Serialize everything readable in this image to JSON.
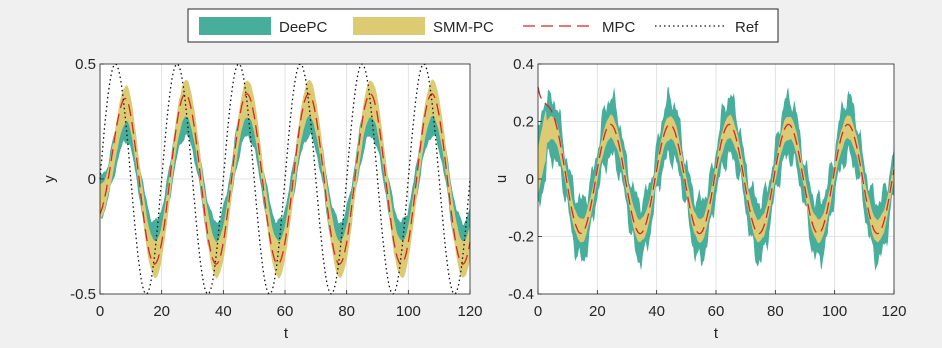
{
  "legend": {
    "placement": "top-center",
    "entries": [
      {
        "label": "DeePC",
        "style": "band",
        "color": "#46ae9a"
      },
      {
        "label": "SMM-PC",
        "style": "band",
        "color": "#dccb72"
      },
      {
        "label": "MPC",
        "style": "dashed-line",
        "color": "#d62728"
      },
      {
        "label": "Ref",
        "style": "dotted-line",
        "color": "#111111"
      }
    ]
  },
  "chart_data": [
    {
      "type": "line",
      "title": "",
      "xlabel": "t",
      "ylabel": "y",
      "xlim": [
        0,
        120
      ],
      "ylim": [
        -0.5,
        0.5
      ],
      "grid": true,
      "xticks": [
        0,
        20,
        40,
        60,
        80,
        100,
        120
      ],
      "yticks": [
        -0.5,
        0,
        0.5
      ],
      "xtick_labels": [
        "0",
        "20",
        "40",
        "60",
        "80",
        "100",
        "120"
      ],
      "ytick_labels": [
        "-0.5",
        "0",
        "0.5"
      ],
      "period": 20,
      "series": [
        {
          "name": "Ref",
          "style": "dotted",
          "color": "#111111",
          "amplitude": 0.5,
          "phase_deg": 0,
          "start": 0
        },
        {
          "name": "MPC",
          "style": "dashed",
          "color": "#d62728",
          "amplitude": 0.37,
          "phase_deg": -48,
          "first_peak": 0.28,
          "start": 0
        },
        {
          "name": "SMM-PC",
          "style": "band",
          "color": "#dccb72",
          "center_amplitude": 0.35,
          "phase_deg": -52,
          "band_upper": 0.44,
          "band_lower": 0.28,
          "band_low": -0.44,
          "band_high_trough": -0.28
        },
        {
          "name": "DeePC",
          "style": "band",
          "color": "#46ae9a",
          "center_amplitude": 0.29,
          "phase_deg": -50,
          "band_upper": 0.38,
          "band_lower": 0.17,
          "band_low": -0.38,
          "band_high_trough": -0.18
        }
      ]
    },
    {
      "type": "line",
      "title": "",
      "xlabel": "t",
      "ylabel": "u",
      "xlim": [
        0,
        120
      ],
      "ylim": [
        -0.4,
        0.4
      ],
      "grid": true,
      "xticks": [
        0,
        20,
        40,
        60,
        80,
        100,
        120
      ],
      "yticks": [
        -0.4,
        -0.2,
        0,
        0.2,
        0.4
      ],
      "xtick_labels": [
        "0",
        "20",
        "40",
        "60",
        "80",
        "100",
        "120"
      ],
      "ytick_labels": [
        "-0.4",
        "-0.2",
        "0",
        "0.2",
        "0.4"
      ],
      "period": 20,
      "series": [
        {
          "name": "MPC",
          "style": "dashed",
          "color": "#d62728",
          "amplitude": 0.19,
          "phase_deg": 10,
          "initial_value": 0.32
        },
        {
          "name": "SMM-PC",
          "style": "band",
          "color": "#dccb72",
          "center_amplitude": 0.18,
          "phase_deg": 8,
          "band_upper": 0.22,
          "band_lower": 0.14,
          "band_low": -0.22,
          "band_high_trough": -0.14
        },
        {
          "name": "DeePC",
          "style": "band",
          "color": "#46ae9a",
          "center_amplitude": 0.18,
          "phase_deg": 8,
          "band_upper": 0.28,
          "band_lower": 0.07,
          "band_low": -0.28,
          "band_high_trough": -0.07
        }
      ]
    }
  ]
}
